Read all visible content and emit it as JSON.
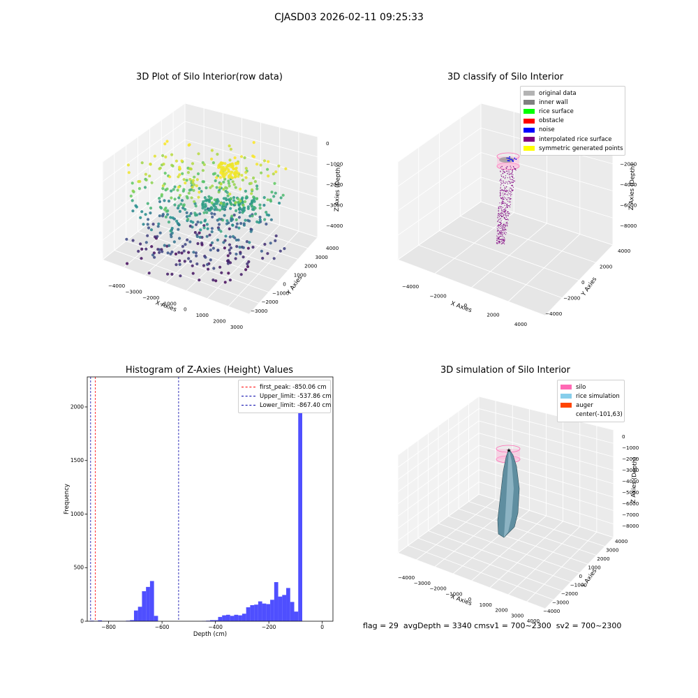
{
  "figure": {
    "suptitle": "CJASD03 2026-02-11 09:25:33",
    "status_text": "flag = 29  avgDepth = 3340 cmsv1 = 700~2300  sv2 = 700~2300"
  },
  "chart_data": [
    {
      "type": "scatter3d",
      "title": "3D Plot of Silo Interior(row data)",
      "xlabel": "X Axies",
      "ylabel": "Y Axies",
      "zlabel": "Z Axies (Depth)",
      "x_ticks": [
        "−4000",
        "−3000",
        "−2000",
        "−1000",
        "0",
        "1000",
        "2000",
        "3000"
      ],
      "y_ticks": [
        "−3000",
        "−2000",
        "−1000",
        "0",
        "1000",
        "2000",
        "3000",
        "4000"
      ],
      "z_ticks": [
        "−4000",
        "−3000",
        "−2000",
        "−1000",
        "0"
      ],
      "xlim": [
        -4500,
        3000
      ],
      "ylim": [
        -3500,
        4000
      ],
      "zlim": [
        -4500,
        0
      ],
      "colormap": "viridis",
      "grid": true
    },
    {
      "type": "scatter3d",
      "title": "3D classify of Silo Interior",
      "xlabel": "X Axies",
      "ylabel": "Y Axies",
      "zlabel": "Z Axies (Depth)",
      "x_ticks": [
        "−4000",
        "−2000",
        "0",
        "2000",
        "4000"
      ],
      "y_ticks": [
        "−4000",
        "−2000",
        "0",
        "2000",
        "4000"
      ],
      "z_ticks": [
        "−8000",
        "−6000",
        "−4000",
        "−2000",
        "0"
      ],
      "zlim": [
        -9000,
        0
      ],
      "grid": true,
      "legend_position": "top-right",
      "legend": [
        {
          "label": "original data",
          "color": "#b3b3b3"
        },
        {
          "label": "inner wall",
          "color": "#808080"
        },
        {
          "label": "rice surface",
          "color": "#00ff00"
        },
        {
          "label": "obstacle",
          "color": "#ff0000"
        },
        {
          "label": "noise",
          "color": "#0000ff"
        },
        {
          "label": "interpolated rice surface",
          "color": "#800080"
        },
        {
          "label": "symmetric generated points",
          "color": "#ffff00"
        }
      ]
    },
    {
      "type": "bar",
      "title": "Histogram of Z-Axies (Height) Values",
      "xlabel": "Depth (cm)",
      "ylabel": "Frequency",
      "xlim": [
        -880,
        40
      ],
      "ylim": [
        0,
        2280
      ],
      "x_ticks": [
        -800,
        -600,
        -400,
        -200,
        0
      ],
      "y_ticks": [
        0,
        500,
        1000,
        1500,
        2000
      ],
      "bar_color": "#4040ff",
      "bin_width": 15,
      "bin_starts": [
        -870,
        -855,
        -840,
        -825,
        -810,
        -795,
        -780,
        -765,
        -750,
        -735,
        -720,
        -705,
        -690,
        -675,
        -660,
        -645,
        -630,
        -615,
        -600,
        -585,
        -570,
        -555,
        -540,
        -525,
        -510,
        -495,
        -480,
        -465,
        -450,
        -435,
        -420,
        -405,
        -390,
        -375,
        -360,
        -345,
        -330,
        -315,
        -300,
        -285,
        -270,
        -255,
        -240,
        -225,
        -210,
        -195,
        -180,
        -165,
        -150,
        -135,
        -120,
        -105,
        -90,
        -75,
        -60,
        -45,
        -30,
        -15
      ],
      "values": [
        5,
        2,
        8,
        2,
        2,
        1,
        1,
        1,
        1,
        5,
        10,
        100,
        135,
        280,
        320,
        375,
        50,
        0,
        0,
        0,
        0,
        0,
        0,
        0,
        0,
        0,
        0,
        0,
        2,
        5,
        10,
        10,
        40,
        55,
        60,
        50,
        60,
        55,
        70,
        130,
        150,
        155,
        185,
        165,
        160,
        200,
        365,
        230,
        245,
        310,
        180,
        90,
        2160,
        0,
        0,
        0,
        0,
        0
      ],
      "lines": [
        {
          "label": "first_peak: -850.06 cm",
          "x": -850.06,
          "color": "#ff0000"
        },
        {
          "label": "Upper_limit: -537.86 cm",
          "x": -537.86,
          "color": "#0000aa"
        },
        {
          "label": "Lower_limit: -867.40 cm",
          "x": -867.4,
          "color": "#0000aa"
        }
      ],
      "legend_position": "top-right"
    },
    {
      "type": "surface3d",
      "title": "3D simulation of Silo Interior",
      "xlabel": "X Axies",
      "ylabel": "Y Axies",
      "zlabel": "Z Axies (Depth)",
      "x_ticks": [
        "−4000",
        "−3000",
        "−2000",
        "−1000",
        "0",
        "1000",
        "2000",
        "3000",
        "4000"
      ],
      "y_ticks": [
        "−4000",
        "−3000",
        "−2000",
        "−1000",
        "0",
        "1000",
        "2000",
        "3000",
        "4000"
      ],
      "z_ticks": [
        "−8000",
        "−7000",
        "−6000",
        "−5000",
        "−4000",
        "−3000",
        "−2000",
        "−1000",
        "0"
      ],
      "grid": true,
      "legend_position": "top-right",
      "legend": [
        {
          "label": "silo",
          "color": "#ff69b4"
        },
        {
          "label": "rice simulation",
          "color": "#87ceeb"
        },
        {
          "label": "auger",
          "color": "#ff4500"
        },
        {
          "label": "center(-101,63)",
          "color": "#ffffff"
        }
      ]
    }
  ]
}
